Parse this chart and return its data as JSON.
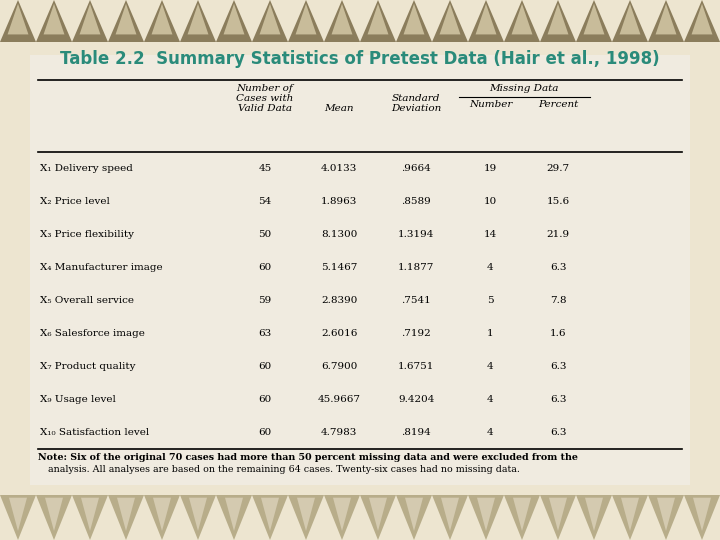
{
  "title": "Table 2.2  Summary Statistics of Pretest Data (Hair et al., 1998)",
  "title_color": "#2A8B7A",
  "bg_color": "#EDE5D0",
  "table_bg": "#F2EDE0",
  "border_top_color": "#C8BC9A",
  "border_bottom_color": "#B8AD8A",
  "col_headers_line1": [
    "",
    "Number of",
    "",
    "Missing Data",
    ""
  ],
  "col_headers_line2": [
    "",
    "Cases with",
    "",
    "Standard",
    "",
    ""
  ],
  "col_headers_line3": [
    "",
    "Valid Data",
    "Mean",
    "Deviation",
    "Number",
    "Percent"
  ],
  "rows": [
    [
      "X₁ Delivery speed",
      "45",
      "4.0133",
      ".9664",
      "19",
      "29.7"
    ],
    [
      "X₂ Price level",
      "54",
      "1.8963",
      ".8589",
      "10",
      "15.6"
    ],
    [
      "X₃ Price flexibility",
      "50",
      "8.1300",
      "1.3194",
      "14",
      "21.9"
    ],
    [
      "X₄ Manufacturer image",
      "60",
      "5.1467",
      "1.1877",
      "4",
      "6.3"
    ],
    [
      "X₅ Overall service",
      "59",
      "2.8390",
      ".7541",
      "5",
      "7.8"
    ],
    [
      "X₆ Salesforce image",
      "63",
      "2.6016",
      ".7192",
      "1",
      "1.6"
    ],
    [
      "X₇ Product quality",
      "60",
      "6.7900",
      "1.6751",
      "4",
      "6.3"
    ],
    [
      "X₉ Usage level",
      "60",
      "45.9667",
      "9.4204",
      "4",
      "6.3"
    ],
    [
      "X₁₀ Satisfaction level",
      "60",
      "4.7983",
      ".8194",
      "4",
      "6.3"
    ]
  ],
  "note_bold": "Note: Six of the original 70 cases had more than 50 percent missing data and were excluded from the",
  "note_normal": "analysis. All analyses are based on the remaining 64 cases. Twenty-six cases had no missing data.",
  "missing_data_label": "Missing Data",
  "tri_color_dark": "#B8AD8A",
  "tri_color_light": "#D4CAB0",
  "tri_color_top_dark": "#8B7D5C",
  "tri_color_top_light": "#C8BC9A"
}
